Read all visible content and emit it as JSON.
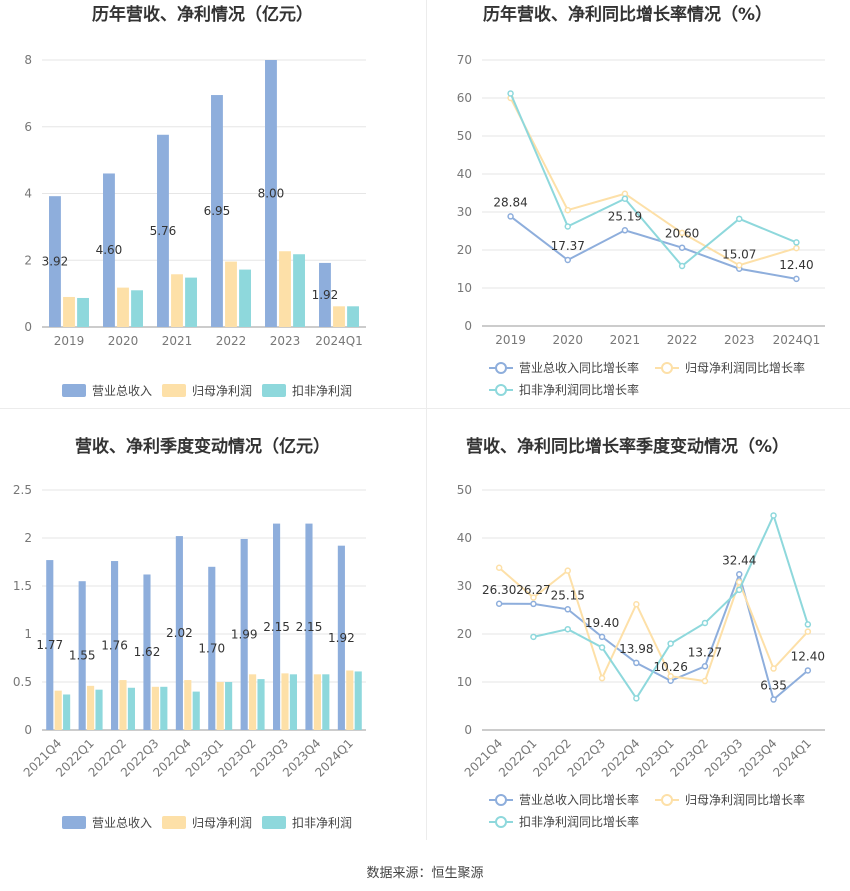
{
  "source": "数据来源：恒生聚源",
  "charts": [
    {
      "type": "bar",
      "title": "历年营收、净利情况（亿元）",
      "categories": [
        "2019",
        "2020",
        "2021",
        "2022",
        "2023",
        "2024Q1"
      ],
      "ylim": [
        0,
        8
      ],
      "yticks": [
        0,
        2,
        4,
        6,
        8
      ],
      "series": [
        {
          "name": "营业总收入",
          "color": "#8eaedc",
          "values": [
            3.92,
            4.6,
            5.76,
            6.95,
            8.0,
            1.92
          ],
          "labels": [
            "3.92",
            "4.60",
            "5.76",
            "6.95",
            "8.00",
            "1.92"
          ]
        },
        {
          "name": "归母净利润",
          "color": "#fde0a8",
          "values": [
            0.9,
            1.18,
            1.58,
            1.96,
            2.27,
            0.62
          ]
        },
        {
          "name": "扣非净利润",
          "color": "#8ed8dc",
          "values": [
            0.87,
            1.1,
            1.48,
            1.72,
            2.18,
            0.62
          ]
        }
      ]
    },
    {
      "type": "line",
      "title": "历年营收、净利同比增长率情况（%）",
      "categories": [
        "2019",
        "2020",
        "2021",
        "2022",
        "2023",
        "2024Q1"
      ],
      "ylim": [
        0,
        70
      ],
      "yticks": [
        0,
        10,
        20,
        30,
        40,
        50,
        60,
        70
      ],
      "series": [
        {
          "name": "营业总收入同比增长率",
          "color": "#8eaedc",
          "values": [
            28.84,
            17.37,
            25.19,
            20.6,
            15.07,
            12.4
          ],
          "labels": [
            "28.84",
            "17.37",
            "25.19",
            "20.60",
            "15.07",
            "12.40"
          ]
        },
        {
          "name": "归母净利润同比增长率",
          "color": "#fde0a8",
          "values": [
            60.0,
            30.5,
            34.8,
            24.5,
            16.0,
            20.5
          ]
        },
        {
          "name": "扣非净利润同比增长率",
          "color": "#8ed8dc",
          "values": [
            61.2,
            26.2,
            33.5,
            15.8,
            28.2,
            22.0
          ]
        }
      ]
    },
    {
      "type": "bar",
      "title": "营收、净利季度变动情况（亿元）",
      "categories": [
        "2021Q4",
        "2022Q1",
        "2022Q2",
        "2022Q3",
        "2022Q4",
        "2023Q1",
        "2023Q2",
        "2023Q3",
        "2023Q4",
        "2024Q1"
      ],
      "ylim": [
        0,
        2.5
      ],
      "yticks": [
        0,
        0.5,
        1,
        1.5,
        2,
        2.5
      ],
      "series": [
        {
          "name": "营业总收入",
          "color": "#8eaedc",
          "values": [
            1.77,
            1.55,
            1.76,
            1.62,
            2.02,
            1.7,
            1.99,
            2.15,
            2.15,
            1.92
          ],
          "labels": [
            "1.77",
            "1.55",
            "1.76",
            "1.62",
            "2.02",
            "1.70",
            "1.99",
            "2.15",
            "2.15",
            "1.92"
          ]
        },
        {
          "name": "归母净利润",
          "color": "#fde0a8",
          "values": [
            0.41,
            0.46,
            0.52,
            0.45,
            0.52,
            0.5,
            0.58,
            0.59,
            0.58,
            0.62
          ]
        },
        {
          "name": "扣非净利润",
          "color": "#8ed8dc",
          "values": [
            0.37,
            0.42,
            0.44,
            0.45,
            0.4,
            0.5,
            0.53,
            0.58,
            0.58,
            0.61
          ]
        }
      ]
    },
    {
      "type": "line",
      "title": "营收、净利同比增长率季度变动情况（%）",
      "categories": [
        "2021Q4",
        "2022Q1",
        "2022Q2",
        "2022Q3",
        "2022Q4",
        "2023Q1",
        "2023Q2",
        "2023Q3",
        "2023Q4",
        "2024Q1"
      ],
      "ylim": [
        0,
        50
      ],
      "yticks": [
        0,
        10,
        20,
        30,
        40,
        50
      ],
      "series": [
        {
          "name": "营业总收入同比增长率",
          "color": "#8eaedc",
          "values": [
            26.3,
            26.27,
            25.15,
            19.4,
            13.98,
            10.26,
            13.27,
            32.44,
            6.35,
            12.4
          ],
          "labels": [
            "26.30",
            "26.27",
            "25.15",
            "19.40",
            "13.98",
            "10.26",
            "13.27",
            "32.44",
            "6.35",
            "12.40"
          ]
        },
        {
          "name": "归母净利润同比增长率",
          "color": "#fde0a8",
          "values": [
            33.8,
            27.6,
            33.2,
            10.8,
            26.2,
            11.2,
            10.2,
            30.8,
            12.8,
            20.5
          ]
        },
        {
          "name": "扣非净利润同比增长率",
          "color": "#8ed8dc",
          "values": [
            null,
            19.4,
            21.0,
            17.2,
            6.6,
            18.0,
            22.3,
            29.2,
            44.7,
            22.0
          ]
        }
      ]
    }
  ]
}
